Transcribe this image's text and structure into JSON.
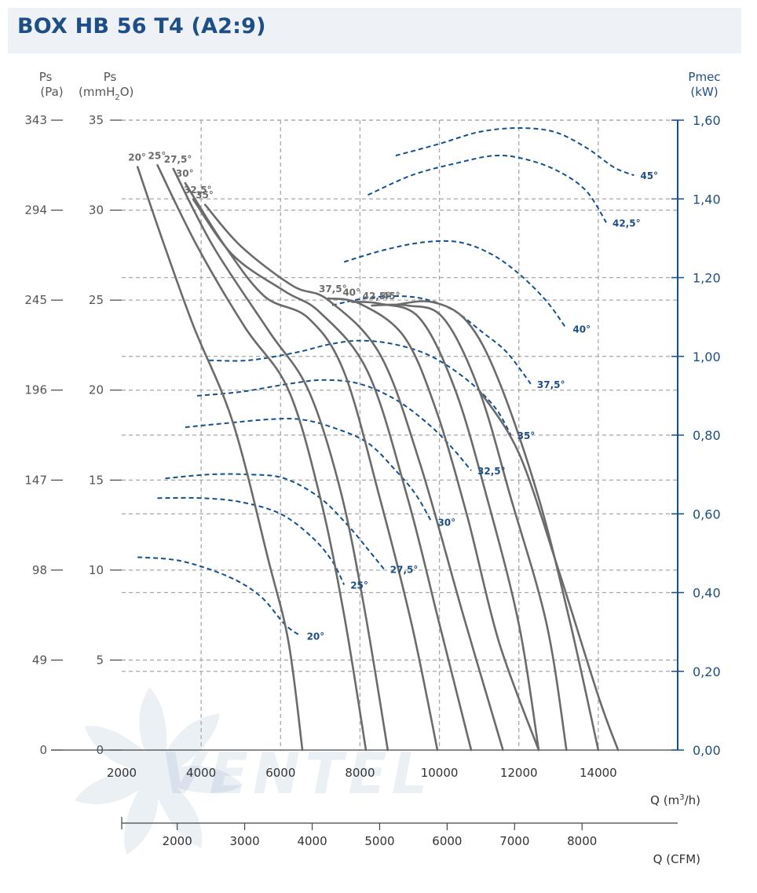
{
  "title": "BOX HB 56 T4 (A2:9)",
  "logo_text": "VENTEL",
  "chart_data": {
    "type": "line",
    "title": "BOX HB 56 T4 (A2:9)",
    "x_axis": {
      "label": "Q (m³/h)",
      "label_main": "Q (m",
      "label_sup": "3",
      "label_tail": "/h)",
      "range": [
        2000,
        16000
      ],
      "ticks": [
        2000,
        4000,
        6000,
        8000,
        10000,
        12000,
        14000
      ],
      "tick_labels": [
        "2000",
        "4000",
        "6000",
        "8000",
        "10000",
        "12000",
        "14000"
      ]
    },
    "x2_axis": {
      "label": "Q (CFM)",
      "range": [
        1157,
        9418
      ],
      "ticks": [
        2000,
        3000,
        4000,
        5000,
        6000,
        7000,
        8000
      ],
      "tick_labels": [
        "2000",
        "3000",
        "4000",
        "5000",
        "6000",
        "7000",
        "8000"
      ]
    },
    "y_axis_pa": {
      "label": "Ps",
      "unit": "(Pa)",
      "tick_labels": [
        "343",
        "294",
        "245",
        "196",
        "147",
        "98",
        "49",
        "0"
      ]
    },
    "y_axis_mm": {
      "label": "Ps",
      "unit_main": "(mmH",
      "unit_sub": "2",
      "unit_tail": "O)",
      "range": [
        0,
        35
      ],
      "ticks": [
        0,
        5,
        10,
        15,
        20,
        25,
        30,
        35
      ],
      "tick_labels": [
        "0",
        "5",
        "10",
        "15",
        "20",
        "25",
        "30",
        "35"
      ]
    },
    "y_axis_power": {
      "label": "Pmec",
      "unit": "(kW)",
      "range": [
        0,
        1.6
      ],
      "ticks": [
        0,
        0.2,
        0.4,
        0.6,
        0.8,
        1.0,
        1.2,
        1.4,
        1.6
      ],
      "tick_labels": [
        "0,00",
        "0,20",
        "0,40",
        "0,60",
        "0,80",
        "1,00",
        "1,20",
        "1,40",
        "1,60"
      ]
    },
    "grid": true,
    "colors": {
      "pressure": "#6b6b6b",
      "power": "#14508a",
      "grid": "#a8a8a8",
      "axis_text": "#555555",
      "power_text": "#1d4e86"
    },
    "pressure_series": [
      {
        "name": "20°",
        "label": "20°",
        "points": [
          [
            2400,
            32.4
          ],
          [
            3000,
            28.5
          ],
          [
            3800,
            23.6
          ],
          [
            4800,
            18.2
          ],
          [
            5700,
            10.5
          ],
          [
            6200,
            6.0
          ],
          [
            6550,
            0
          ]
        ]
      },
      {
        "name": "25°",
        "label": "25°",
        "points": [
          [
            2900,
            32.5
          ],
          [
            3900,
            28.0
          ],
          [
            5100,
            23.5
          ],
          [
            6200,
            20.0
          ],
          [
            7000,
            14.0
          ],
          [
            7600,
            7.5
          ],
          [
            8150,
            0
          ]
        ]
      },
      {
        "name": "27,5°",
        "label": "27,5°",
        "points": [
          [
            3300,
            32.3
          ],
          [
            4300,
            28.0
          ],
          [
            5700,
            23.3
          ],
          [
            6700,
            20.0
          ],
          [
            7500,
            14.5
          ],
          [
            8100,
            8.0
          ],
          [
            8700,
            0
          ]
        ]
      },
      {
        "name": "30°",
        "label": "30°",
        "points": [
          [
            3600,
            31.5
          ],
          [
            4600,
            28.0
          ],
          [
            5600,
            25.2
          ],
          [
            6700,
            24.0
          ],
          [
            7600,
            21.0
          ],
          [
            8500,
            14.0
          ],
          [
            9300,
            7.0
          ],
          [
            9950,
            0
          ]
        ]
      },
      {
        "name": "32,5°",
        "label": "32,5°",
        "points": [
          [
            3800,
            30.6
          ],
          [
            4800,
            27.5
          ],
          [
            6100,
            25.5
          ],
          [
            7000,
            24.3
          ],
          [
            8200,
            21.0
          ],
          [
            9200,
            14.0
          ],
          [
            10000,
            7.0
          ],
          [
            10800,
            0
          ]
        ]
      },
      {
        "name": "35°",
        "label": "35°",
        "points": [
          [
            4100,
            30.3
          ],
          [
            5000,
            28.0
          ],
          [
            6300,
            25.8
          ],
          [
            7200,
            25.0
          ],
          [
            8500,
            22.0
          ],
          [
            9500,
            16.0
          ],
          [
            10600,
            7.5
          ],
          [
            11600,
            0
          ]
        ]
      },
      {
        "name": "37,5°",
        "label": "37,5°",
        "points": [
          [
            7200,
            25.1
          ],
          [
            8000,
            24.8
          ],
          [
            9100,
            23.0
          ],
          [
            9900,
            19.0
          ],
          [
            10700,
            13.0
          ],
          [
            11500,
            6.0
          ],
          [
            12500,
            0
          ]
        ]
      },
      {
        "name": "40°",
        "label": "40°",
        "points": [
          [
            7800,
            24.9
          ],
          [
            8500,
            24.8
          ],
          [
            9500,
            24.0
          ],
          [
            10400,
            20.0
          ],
          [
            11200,
            14.0
          ],
          [
            12000,
            7.0
          ],
          [
            12500,
            0
          ]
        ]
      },
      {
        "name": "42,5°",
        "label": "42,5°",
        "points": [
          [
            8300,
            24.7
          ],
          [
            9200,
            24.7
          ],
          [
            10100,
            24.0
          ],
          [
            11000,
            20.0
          ],
          [
            11800,
            14.0
          ],
          [
            12700,
            7.0
          ],
          [
            13200,
            0
          ]
        ]
      },
      {
        "name": "45°",
        "label": "45°",
        "points": [
          [
            8800,
            24.7
          ],
          [
            9800,
            24.9
          ],
          [
            10700,
            23.8
          ],
          [
            11500,
            20.5
          ],
          [
            12500,
            14.0
          ],
          [
            13300,
            7.0
          ],
          [
            14000,
            0
          ]
        ]
      },
      {
        "name": "45°+",
        "label": "",
        "points": [
          [
            11000,
            20.0
          ],
          [
            12000,
            16.5
          ],
          [
            13000,
            10.0
          ],
          [
            14000,
            3.0
          ],
          [
            14500,
            0
          ]
        ]
      }
    ],
    "power_series": [
      {
        "name": "20°",
        "label": "20°",
        "points": [
          [
            2400,
            0.49
          ],
          [
            3500,
            0.48
          ],
          [
            4700,
            0.44
          ],
          [
            5500,
            0.39
          ],
          [
            6100,
            0.32
          ],
          [
            6500,
            0.29
          ]
        ]
      },
      {
        "name": "25°",
        "label": "25°",
        "points": [
          [
            2900,
            0.64
          ],
          [
            4000,
            0.64
          ],
          [
            5000,
            0.63
          ],
          [
            6000,
            0.6
          ],
          [
            6800,
            0.54
          ],
          [
            7300,
            0.48
          ],
          [
            7600,
            0.42
          ]
        ]
      },
      {
        "name": "27,5°",
        "label": "27,5°",
        "points": [
          [
            3100,
            0.69
          ],
          [
            4200,
            0.7
          ],
          [
            5200,
            0.7
          ],
          [
            6100,
            0.69
          ],
          [
            7000,
            0.64
          ],
          [
            7700,
            0.57
          ],
          [
            8200,
            0.51
          ],
          [
            8600,
            0.46
          ]
        ]
      },
      {
        "name": "30°",
        "label": "30°",
        "points": [
          [
            3600,
            0.82
          ],
          [
            4600,
            0.83
          ],
          [
            5700,
            0.84
          ],
          [
            6500,
            0.84
          ],
          [
            7300,
            0.82
          ],
          [
            8200,
            0.78
          ],
          [
            8900,
            0.71
          ],
          [
            9400,
            0.65
          ],
          [
            9800,
            0.58
          ]
        ]
      },
      {
        "name": "32,5°",
        "label": "32,5°",
        "points": [
          [
            3900,
            0.9
          ],
          [
            5000,
            0.91
          ],
          [
            6200,
            0.93
          ],
          [
            7100,
            0.94
          ],
          [
            8000,
            0.93
          ],
          [
            8900,
            0.89
          ],
          [
            9700,
            0.83
          ],
          [
            10300,
            0.77
          ],
          [
            10800,
            0.71
          ]
        ]
      },
      {
        "name": "35°",
        "label": "35°",
        "points": [
          [
            4200,
            0.99
          ],
          [
            5200,
            0.99
          ],
          [
            6400,
            1.01
          ],
          [
            7200,
            1.03
          ],
          [
            8000,
            1.04
          ],
          [
            8900,
            1.03
          ],
          [
            9800,
            1.0
          ],
          [
            10700,
            0.94
          ],
          [
            11400,
            0.87
          ],
          [
            11800,
            0.8
          ]
        ]
      },
      {
        "name": "37,5°",
        "label": "37,5°",
        "points": [
          [
            7300,
            1.13
          ],
          [
            8300,
            1.15
          ],
          [
            9400,
            1.15
          ],
          [
            10300,
            1.12
          ],
          [
            11100,
            1.06
          ],
          [
            11700,
            1.01
          ],
          [
            12300,
            0.93
          ]
        ]
      },
      {
        "name": "40°",
        "label": "40°",
        "points": [
          [
            7600,
            1.24
          ],
          [
            8600,
            1.27
          ],
          [
            9600,
            1.29
          ],
          [
            10500,
            1.29
          ],
          [
            11300,
            1.26
          ],
          [
            12000,
            1.21
          ],
          [
            12700,
            1.14
          ],
          [
            13200,
            1.07
          ]
        ]
      },
      {
        "name": "42,5°",
        "label": "42,5°",
        "points": [
          [
            8200,
            1.41
          ],
          [
            9300,
            1.46
          ],
          [
            10400,
            1.49
          ],
          [
            11400,
            1.51
          ],
          [
            12200,
            1.5
          ],
          [
            13000,
            1.47
          ],
          [
            13700,
            1.42
          ],
          [
            14200,
            1.34
          ]
        ]
      },
      {
        "name": "45°",
        "label": "45°",
        "points": [
          [
            8900,
            1.51
          ],
          [
            10000,
            1.54
          ],
          [
            11000,
            1.57
          ],
          [
            12000,
            1.58
          ],
          [
            12900,
            1.57
          ],
          [
            13700,
            1.53
          ],
          [
            14400,
            1.48
          ],
          [
            14900,
            1.46
          ]
        ]
      }
    ]
  }
}
